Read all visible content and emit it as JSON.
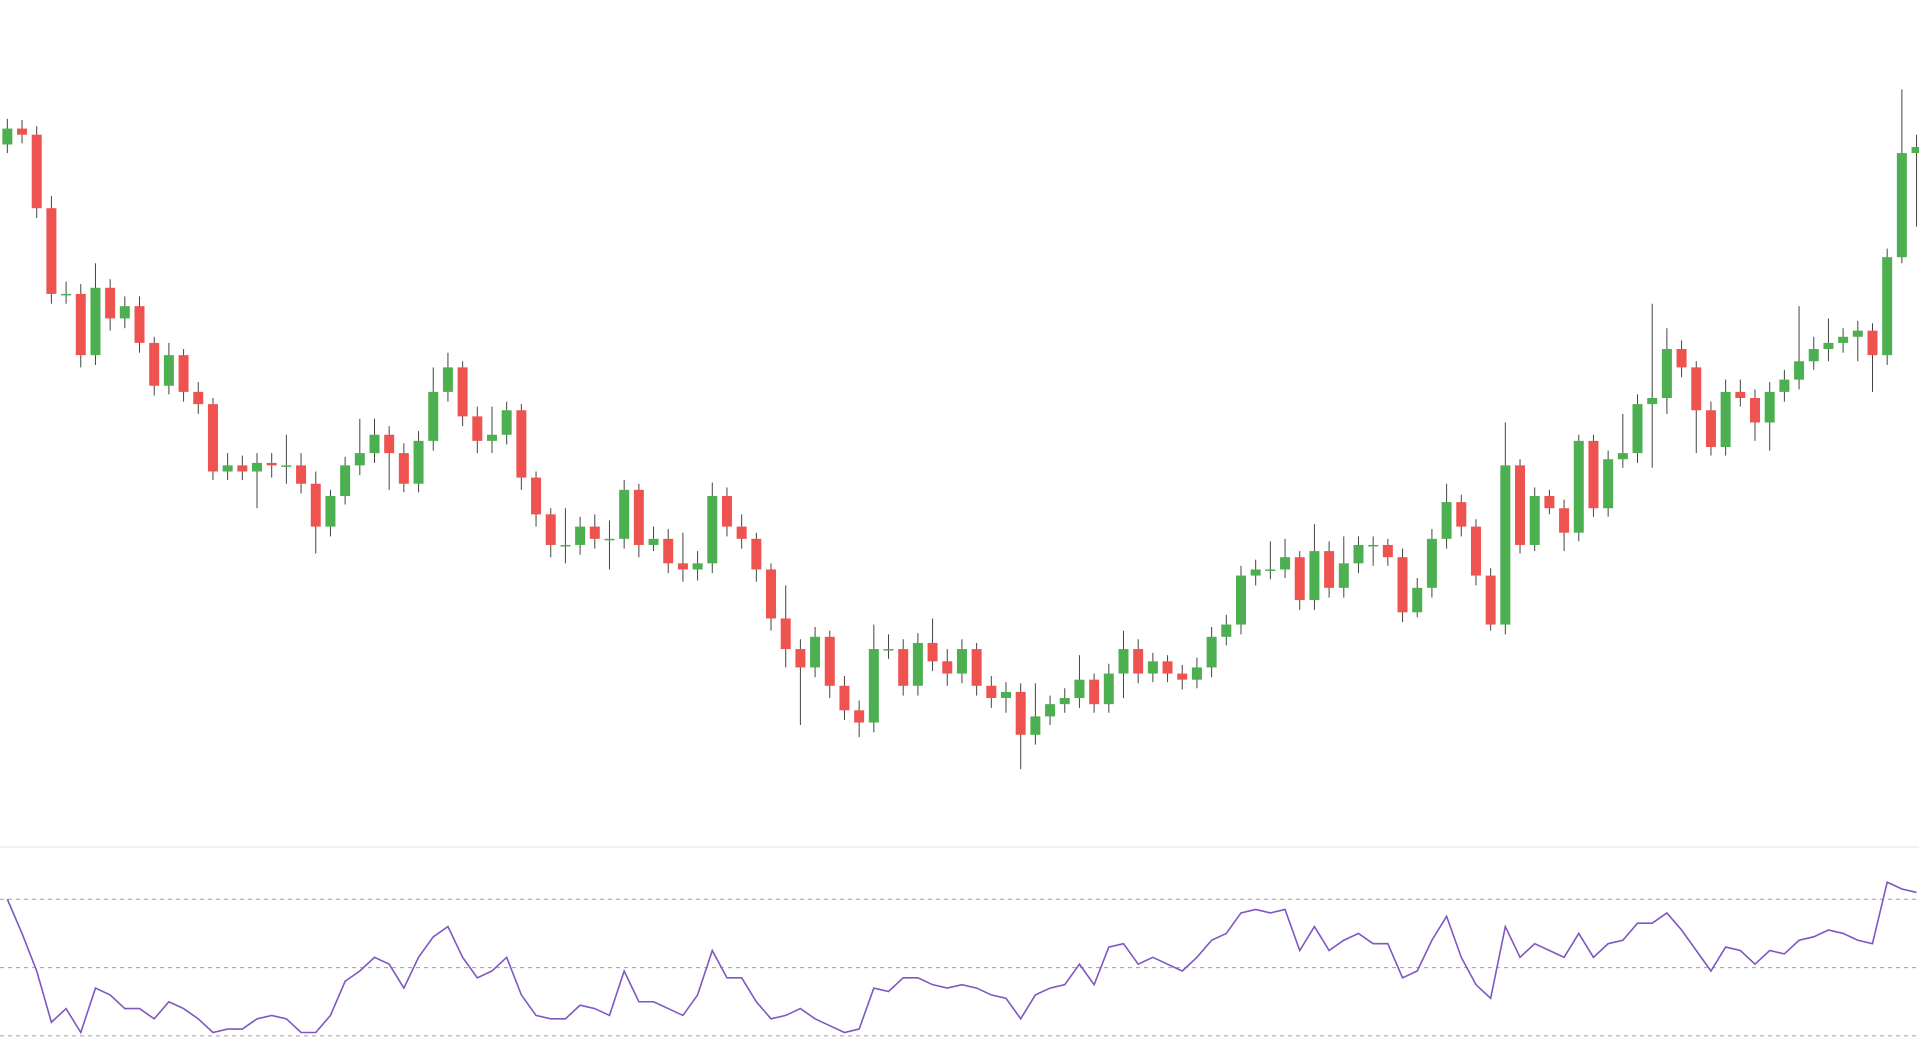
{
  "chart_data": [
    {
      "type": "candlestick",
      "up_color": "#4caf50",
      "down_color": "#ef5350",
      "ylim": [
        10,
        700
      ],
      "open": [
        582,
        595,
        590,
        530,
        460,
        460,
        410,
        465,
        440,
        450,
        420,
        385,
        410,
        380,
        370,
        315,
        320,
        315,
        322,
        320,
        320,
        305,
        270,
        295,
        320,
        330,
        345,
        330,
        305,
        340,
        380,
        400,
        360,
        340,
        345,
        365,
        310,
        280,
        255,
        255,
        270,
        260,
        260,
        300,
        255,
        260,
        240,
        235,
        240,
        295,
        270,
        260,
        235,
        195,
        170,
        155,
        180,
        140,
        120,
        110,
        170,
        170,
        140,
        175,
        160,
        150,
        170,
        140,
        130,
        135,
        100,
        115,
        125,
        130,
        145,
        125,
        150,
        170,
        150,
        160,
        150,
        145,
        155,
        180,
        190,
        230,
        235,
        235,
        245,
        210,
        250,
        220,
        240,
        255,
        255,
        245,
        200,
        220,
        260,
        290,
        270,
        230,
        190,
        320,
        255,
        295,
        285,
        265,
        340,
        285,
        325,
        330,
        370,
        375,
        415,
        400,
        365,
        335,
        380,
        375,
        355,
        380,
        390,
        405,
        415,
        420,
        425,
        430,
        410,
        490,
        575
      ],
      "high": [
        603,
        602,
        597,
        540,
        470,
        468,
        485,
        472,
        458,
        458,
        425,
        420,
        415,
        388,
        375,
        330,
        328,
        330,
        330,
        345,
        330,
        315,
        300,
        327,
        358,
        358,
        352,
        338,
        348,
        400,
        412,
        405,
        368,
        368,
        372,
        370,
        315,
        285,
        285,
        278,
        280,
        275,
        308,
        305,
        270,
        268,
        265,
        250,
        306,
        302,
        280,
        265,
        240,
        222,
        178,
        188,
        185,
        148,
        128,
        190,
        182,
        178,
        183,
        195,
        170,
        178,
        175,
        148,
        143,
        142,
        142,
        132,
        138,
        165,
        150,
        158,
        185,
        178,
        167,
        165,
        157,
        163,
        188,
        198,
        238,
        243,
        258,
        260,
        250,
        272,
        258,
        262,
        262,
        262,
        260,
        252,
        228,
        268,
        305,
        296,
        276,
        236,
        355,
        325,
        302,
        300,
        292,
        345,
        345,
        332,
        362,
        378,
        452,
        432,
        422,
        405,
        372,
        390,
        390,
        382,
        388,
        398,
        450,
        425,
        440,
        432,
        438,
        436,
        497,
        627,
        590
      ],
      "low": [
        575,
        583,
        522,
        452,
        452,
        400,
        402,
        430,
        432,
        412,
        377,
        378,
        372,
        362,
        308,
        308,
        308,
        285,
        310,
        305,
        297,
        248,
        262,
        288,
        312,
        322,
        300,
        298,
        298,
        332,
        372,
        352,
        330,
        330,
        337,
        300,
        270,
        245,
        240,
        247,
        252,
        235,
        252,
        245,
        250,
        232,
        225,
        226,
        232,
        262,
        252,
        225,
        185,
        155,
        108,
        147,
        130,
        112,
        98,
        102,
        162,
        132,
        132,
        152,
        140,
        142,
        132,
        122,
        118,
        72,
        92,
        108,
        118,
        122,
        118,
        118,
        130,
        142,
        143,
        143,
        137,
        138,
        147,
        173,
        182,
        222,
        227,
        228,
        202,
        202,
        212,
        212,
        232,
        238,
        238,
        192,
        196,
        212,
        252,
        262,
        222,
        185,
        182,
        248,
        250,
        280,
        250,
        258,
        278,
        278,
        318,
        322,
        318,
        362,
        392,
        330,
        328,
        328,
        368,
        340,
        332,
        372,
        382,
        398,
        405,
        412,
        405,
        380,
        402,
        485,
        515
      ],
      "close": [
        595,
        590,
        530,
        460,
        460,
        410,
        465,
        440,
        450,
        420,
        385,
        410,
        380,
        370,
        315,
        320,
        315,
        322,
        320,
        320,
        305,
        270,
        295,
        320,
        330,
        345,
        330,
        305,
        340,
        380,
        400,
        360,
        340,
        345,
        365,
        310,
        280,
        255,
        255,
        270,
        260,
        260,
        300,
        255,
        260,
        240,
        235,
        240,
        295,
        270,
        260,
        235,
        195,
        170,
        155,
        180,
        140,
        120,
        110,
        170,
        170,
        140,
        175,
        160,
        150,
        170,
        140,
        130,
        135,
        100,
        115,
        125,
        130,
        145,
        125,
        150,
        170,
        150,
        160,
        150,
        145,
        155,
        180,
        190,
        230,
        235,
        235,
        245,
        210,
        250,
        220,
        240,
        255,
        255,
        245,
        200,
        220,
        260,
        290,
        270,
        230,
        190,
        320,
        255,
        295,
        285,
        265,
        340,
        285,
        325,
        330,
        370,
        375,
        415,
        400,
        365,
        335,
        380,
        375,
        355,
        380,
        390,
        405,
        415,
        420,
        425,
        430,
        410,
        490,
        575,
        580
      ]
    },
    {
      "type": "line",
      "color": "#7e57c2",
      "ylim": [
        25,
        85
      ],
      "levels": [
        30,
        50,
        70
      ],
      "values": [
        70,
        60,
        49,
        34,
        38,
        31,
        44,
        42,
        38,
        38,
        35,
        40,
        38,
        35,
        31,
        32,
        32,
        35,
        36,
        35,
        31,
        31,
        36,
        46,
        49,
        53,
        51,
        44,
        53,
        59,
        62,
        53,
        47,
        49,
        53,
        42,
        36,
        35,
        35,
        39,
        38,
        36,
        49,
        40,
        40,
        38,
        36,
        42,
        55,
        47,
        47,
        40,
        35,
        36,
        38,
        35,
        33,
        31,
        32,
        44,
        43,
        47,
        47,
        45,
        44,
        45,
        44,
        42,
        41,
        35,
        42,
        44,
        45,
        51,
        45,
        56,
        57,
        51,
        53,
        51,
        49,
        53,
        58,
        60,
        66,
        67,
        66,
        67,
        55,
        62,
        55,
        58,
        60,
        57,
        57,
        47,
        49,
        58,
        65,
        53,
        45,
        41,
        62,
        53,
        57,
        55,
        53,
        60,
        53,
        57,
        58,
        63,
        63,
        66,
        61,
        55,
        49,
        56,
        55,
        51,
        55,
        54,
        58,
        59,
        61,
        60,
        58,
        57,
        75,
        73,
        72
      ]
    }
  ]
}
